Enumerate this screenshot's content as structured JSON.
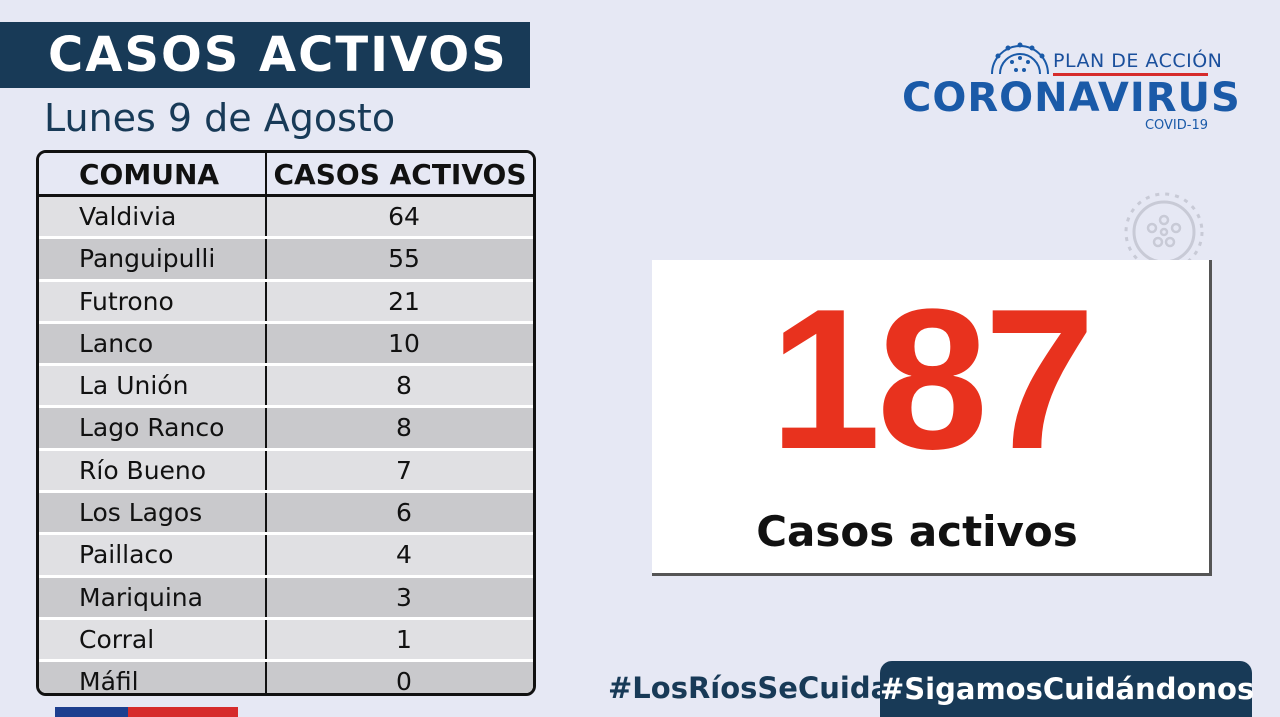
{
  "header": {
    "title": "CASOS ACTIVOS",
    "date": "Lunes 9 de Agosto"
  },
  "logo": {
    "plan": "PLAN DE ACCIÓN",
    "main": "CORONAVIRUS",
    "sub": "COVID-19"
  },
  "table": {
    "columns": [
      "COMUNA",
      "CASOS ACTIVOS"
    ],
    "rows": [
      {
        "comuna": "Valdivia",
        "casos": "64"
      },
      {
        "comuna": "Panguipulli",
        "casos": "55"
      },
      {
        "comuna": "Futrono",
        "casos": "21"
      },
      {
        "comuna": "Lanco",
        "casos": "10"
      },
      {
        "comuna": "La Unión",
        "casos": "8"
      },
      {
        "comuna": "Lago Ranco",
        "casos": "8"
      },
      {
        "comuna": "Río Bueno",
        "casos": "7"
      },
      {
        "comuna": "Los Lagos",
        "casos": "6"
      },
      {
        "comuna": "Paillaco",
        "casos": "4"
      },
      {
        "comuna": "Mariquina",
        "casos": "3"
      },
      {
        "comuna": "Corral",
        "casos": "1"
      },
      {
        "comuna": "Máfil",
        "casos": "0"
      }
    ]
  },
  "summary": {
    "total": "187",
    "label": "Casos activos"
  },
  "footer": {
    "hashtag_left": "#LosRíosSeCuida",
    "hashtag_right": "#SigamosCuidándonos"
  },
  "colors": {
    "navy": "#183a57",
    "accent_red": "#e8321e",
    "logo_blue": "#1a5aa8",
    "background": "#e6e8f4"
  },
  "icons": [
    "virus-icon"
  ]
}
